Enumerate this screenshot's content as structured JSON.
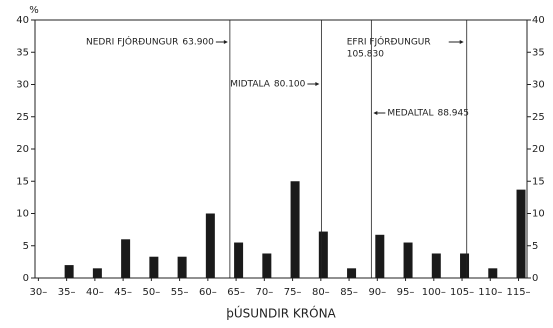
{
  "chart_data": {
    "type": "bar",
    "y_label": "%",
    "x_label": "þÚSUNDIR KRÓNA",
    "x": [
      30,
      35,
      40,
      45,
      50,
      55,
      60,
      65,
      70,
      75,
      80,
      85,
      90,
      95,
      100,
      105,
      110,
      115
    ],
    "values": [
      0,
      2,
      1.5,
      6,
      3.3,
      3.3,
      10,
      5.5,
      3.8,
      15,
      7.2,
      1.5,
      6.7,
      5.5,
      3.8,
      3.8,
      1.5,
      13.7
    ],
    "color": "#1a1a1a",
    "xlim": [
      29.4,
      116.5
    ],
    "xticks": [
      {
        "value": 30,
        "label": "30–"
      },
      {
        "value": 35,
        "label": "35–"
      },
      {
        "value": 40,
        "label": "40–"
      },
      {
        "value": 45,
        "label": "45–"
      },
      {
        "value": 50,
        "label": "50–"
      },
      {
        "value": 55,
        "label": "55–"
      },
      {
        "value": 60,
        "label": "60–"
      },
      {
        "value": 65,
        "label": "65–"
      },
      {
        "value": 70,
        "label": "70–"
      },
      {
        "value": 75,
        "label": "75–"
      },
      {
        "value": 80,
        "label": "80–"
      },
      {
        "value": 85,
        "label": "85–"
      },
      {
        "value": 90,
        "label": "90–"
      },
      {
        "value": 95,
        "label": "95–"
      },
      {
        "value": 100,
        "label": "100–"
      },
      {
        "value": 105,
        "label": "105–"
      },
      {
        "value": 110,
        "label": "110–"
      },
      {
        "value": 115,
        "label": "115–"
      }
    ],
    "ylim": [
      0,
      40
    ],
    "yticks": [
      0,
      5,
      10,
      15,
      20,
      25,
      30,
      35,
      40
    ],
    "annotations": [
      {
        "x": 63.9,
        "label": "NEDRI FJÓRÐUNGUR",
        "value_label": "63.900"
      },
      {
        "x": 80.1,
        "label": "MIDTALA",
        "value_label": "80.100"
      },
      {
        "x": 88.945,
        "label": "MEDALTAL",
        "value_label": "88.945"
      },
      {
        "x": 105.83,
        "label": "EFRI FJÓRÐUNGUR",
        "value_label": "105.830"
      }
    ]
  }
}
